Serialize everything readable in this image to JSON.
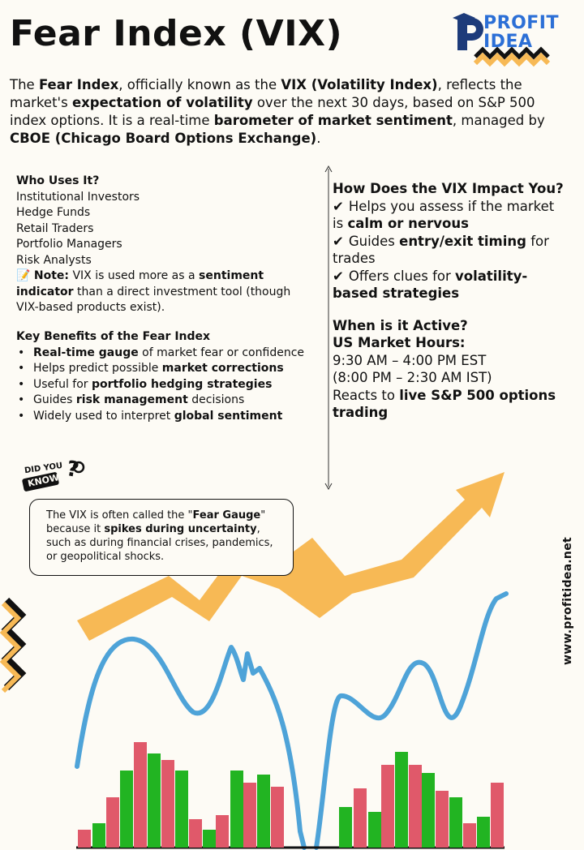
{
  "header": {
    "title": "Fear Index (VIX)",
    "logo_line1": "PROFIT",
    "logo_line2": "IDEA"
  },
  "intro": {
    "t1": "The ",
    "b1": "Fear Index",
    "t2": ", officially known as the ",
    "b2": "VIX (Volatility Index)",
    "t3": ", reflects the market's ",
    "b3": "expectation of volatility",
    "t4": " over the next 30 days, based on S&P 500 index options. It is a real-time ",
    "b4": "barometer of market sentiment",
    "t5": ", managed by ",
    "b5": "CBOE (Chicago Board Options Exchange)",
    "t6": "."
  },
  "who_uses": {
    "heading": "Who Uses It?",
    "items": [
      "Institutional Investors",
      "Hedge Funds",
      "Retail Traders",
      "Portfolio Managers",
      "Risk Analysts"
    ],
    "note_icon": "📝",
    "note_label": "Note:",
    "note_t1": " VIX is used more as a ",
    "note_b1": "sentiment indicator",
    "note_t2": " than a direct investment tool (though VIX-based products exist)."
  },
  "benefits": {
    "heading": "Key Benefits of the Fear Index",
    "items": [
      {
        "pre": "",
        "bold": "Real-time gauge",
        "post": " of market fear or confidence"
      },
      {
        "pre": "Helps predict possible ",
        "bold": "market corrections",
        "post": ""
      },
      {
        "pre": "Useful for ",
        "bold": "portfolio hedging strategies",
        "post": ""
      },
      {
        "pre": "Guides ",
        "bold": "risk management",
        "post": " decisions"
      },
      {
        "pre": "Widely used to interpret ",
        "bold": "global sentiment",
        "post": ""
      }
    ]
  },
  "impact": {
    "heading": "How Does the VIX Impact You?",
    "check": "✔",
    "items": [
      {
        "pre": "Helps you assess if the market is ",
        "bold": "calm or nervous",
        "post": ""
      },
      {
        "pre": "Guides ",
        "bold": "entry/exit timing",
        "post": " for trades"
      },
      {
        "pre": "Offers clues for ",
        "bold": "volatility-based strategies",
        "post": ""
      }
    ]
  },
  "active": {
    "heading": "When is it Active?",
    "subheading": "US Market Hours:",
    "time_est": "9:30 AM – 4:00 PM EST",
    "time_ist": "(8:00 PM – 2:30 AM IST)",
    "t1": "Reacts to ",
    "b1": "live S&P 500 options trading"
  },
  "did_you_know": {
    "line1": "DID YOU",
    "line2": "KNOW",
    "mark": "?",
    "t1": "The VIX is often called the \"",
    "b1": "Fear Gauge",
    "t2": "\" because it ",
    "b2": "spikes during uncertainty",
    "t3": ", such as during financial crises, pandemics, or geopolitical shocks."
  },
  "footer": {
    "website": "www.profitidea.net"
  },
  "colors": {
    "accent_yellow": "#f7b955",
    "line_blue": "#4ea3d8",
    "bar_green": "#22b422",
    "bar_red": "#e0596a",
    "logo_blue": "#2c6fd6"
  }
}
